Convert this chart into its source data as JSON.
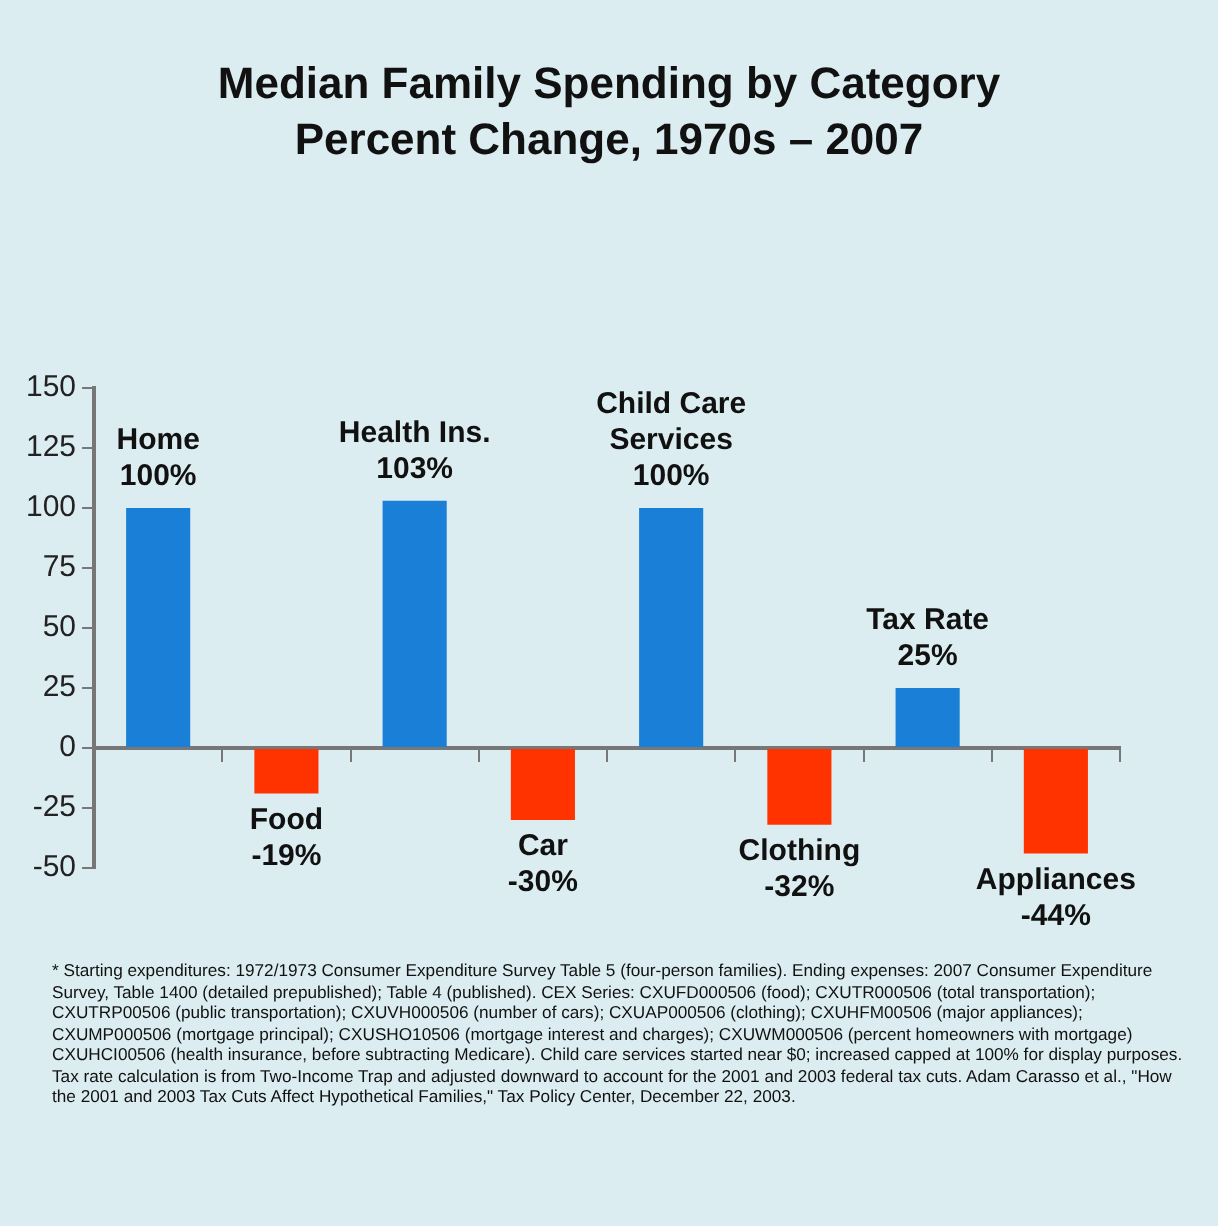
{
  "chart_data": {
    "type": "bar",
    "title": "Median Family Spending by Category",
    "subtitle": "Percent Change, 1970s – 2007",
    "categories": [
      "Home",
      "Food",
      "Health Ins.",
      "Car",
      "Child Care Services",
      "Clothing",
      "Tax Rate",
      "Appliances"
    ],
    "values": [
      100,
      -19,
      103,
      -30,
      100,
      -32,
      25,
      -44
    ],
    "value_labels": [
      "100%",
      "-19%",
      "103%",
      "-30%",
      "100%",
      "-32%",
      "25%",
      "-44%"
    ],
    "colors": [
      "#1a7fd6",
      "#ff3300",
      "#1a7fd6",
      "#ff3300",
      "#1a7fd6",
      "#ff3300",
      "#1a7fd6",
      "#ff3300"
    ],
    "ylim": [
      -50,
      150
    ],
    "yticks": [
      -50,
      -25,
      0,
      25,
      50,
      75,
      100,
      125,
      150
    ],
    "legend": false,
    "tick_labels": "y",
    "annotations": [
      "* Starting expenditures: 1972/1973 Consumer Expenditure Survey Table 5 (four-person families). Ending expenses: 2007 Consumer Expenditure Survey, Table 1400 (detailed prepublished); Table 4 (published). CEX Series: CXUFD000506 (food); CXUTR000506 (total transportation); CXUTRP00506 (public transportation); CXUVH000506 (number of cars); CXUAP000506 (clothing); CXUHFM00506 (major appliances); CXUMP000506 (mortgage principal); CXUSHO10506 (mortgage interest and charges); CXUWM000506 (percent homeowners with mortgage) CXUHCI00506 (health insurance, before subtracting Medicare). Child care services started near $0; increased capped at 100% for display purposes. Tax rate calculation is from Two-Income Trap and adjusted downward to account for the 2001 and 2003 federal tax cuts. Adam Carasso et al., \"How the 2001 and 2003 Tax Cuts Affect Hypothetical Families,\" Tax Policy Center, December 22, 2003."
    ]
  }
}
